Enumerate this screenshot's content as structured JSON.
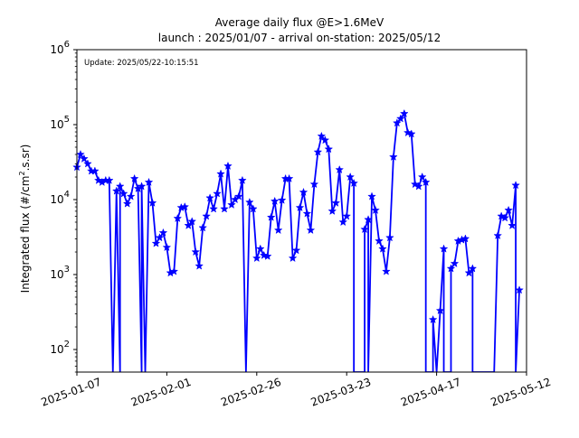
{
  "chart_data": {
    "type": "line",
    "title": "Average daily flux @E>1.6MeV",
    "subtitle": "launch : 2025/01/07 - arrival on-station: 2025/05/12",
    "annotation": "Update: 2025/05/22-10:15:51",
    "ylabel_parts": {
      "pre": "Integrated flux (#/cm",
      "sup": "2",
      "post": ".s.sr)"
    },
    "xlabel": "",
    "y_scale": "log",
    "ylim": [
      50,
      1000000
    ],
    "y_ticks": [
      {
        "value": 100,
        "label": "10",
        "exp": "2"
      },
      {
        "value": 1000,
        "label": "10",
        "exp": "3"
      },
      {
        "value": 10000,
        "label": "10",
        "exp": "4"
      },
      {
        "value": 100000,
        "label": "10",
        "exp": "5"
      },
      {
        "value": 1000000,
        "label": "10",
        "exp": "6"
      }
    ],
    "xlim": [
      "2025-01-07",
      "2025-05-12"
    ],
    "x_ticks": [
      "2025-01-07",
      "2025-02-01",
      "2025-02-26",
      "2025-03-23",
      "2025-04-17",
      "2025-05-12"
    ],
    "grid": false,
    "color": "#0000ff",
    "marker": "star",
    "series": [
      {
        "points": [
          [
            "2025-01-07",
            27000
          ],
          [
            "2025-01-08",
            40000
          ],
          [
            "2025-01-09",
            35000
          ],
          [
            "2025-01-10",
            30000
          ],
          [
            "2025-01-11",
            24000
          ],
          [
            "2025-01-12",
            24000
          ],
          [
            "2025-01-13",
            18000
          ],
          [
            "2025-01-14",
            17000
          ],
          [
            "2025-01-15",
            18000
          ],
          [
            "2025-01-16",
            18000
          ],
          [
            "2025-01-17",
            50
          ],
          [
            "2025-01-18",
            13000
          ],
          [
            "2025-01-19",
            50
          ],
          [
            "2025-01-19",
            15000
          ],
          [
            "2025-01-20",
            12000
          ],
          [
            "2025-01-21",
            8800
          ],
          [
            "2025-01-22",
            11000
          ],
          [
            "2025-01-23",
            19000
          ],
          [
            "2025-01-24",
            14000
          ],
          [
            "2025-01-25",
            50
          ],
          [
            "2025-01-25",
            15000
          ],
          [
            "2025-01-26",
            50
          ],
          [
            "2025-01-27",
            17000
          ],
          [
            "2025-01-28",
            9000
          ],
          [
            "2025-01-29",
            2600
          ],
          [
            "2025-01-30",
            3100
          ],
          [
            "2025-01-31",
            3600
          ],
          [
            "2025-02-01",
            2300
          ],
          [
            "2025-02-02",
            1050
          ],
          [
            "2025-02-03",
            1100
          ],
          [
            "2025-02-04",
            5600
          ],
          [
            "2025-02-05",
            7800
          ],
          [
            "2025-02-06",
            8000
          ],
          [
            "2025-02-07",
            4500
          ],
          [
            "2025-02-08",
            5100
          ],
          [
            "2025-02-09",
            2000
          ],
          [
            "2025-02-10",
            1300
          ],
          [
            "2025-02-11",
            4200
          ],
          [
            "2025-02-12",
            6000
          ],
          [
            "2025-02-13",
            10500
          ],
          [
            "2025-02-14",
            7500
          ],
          [
            "2025-02-15",
            12000
          ],
          [
            "2025-02-16",
            22000
          ],
          [
            "2025-02-17",
            7500
          ],
          [
            "2025-02-18",
            28000
          ],
          [
            "2025-02-19",
            8500
          ],
          [
            "2025-02-20",
            10000
          ],
          [
            "2025-02-21",
            11000
          ],
          [
            "2025-02-22",
            18000
          ],
          [
            "2025-02-23",
            50
          ],
          [
            "2025-02-24",
            9200
          ],
          [
            "2025-02-25",
            7500
          ],
          [
            "2025-02-26",
            1650
          ],
          [
            "2025-02-27",
            2200
          ],
          [
            "2025-02-28",
            1800
          ],
          [
            "2025-03-01",
            1750
          ],
          [
            "2025-03-02",
            5800
          ],
          [
            "2025-03-03",
            9500
          ],
          [
            "2025-03-04",
            3900
          ],
          [
            "2025-03-05",
            9800
          ],
          [
            "2025-03-06",
            19000
          ],
          [
            "2025-03-07",
            19000
          ],
          [
            "2025-03-08",
            1650
          ],
          [
            "2025-03-09",
            2100
          ],
          [
            "2025-03-10",
            7800
          ],
          [
            "2025-03-11",
            12500
          ],
          [
            "2025-03-12",
            6500
          ],
          [
            "2025-03-13",
            3900
          ],
          [
            "2025-03-14",
            16000
          ],
          [
            "2025-03-15",
            43000
          ],
          [
            "2025-03-16",
            70000
          ],
          [
            "2025-03-17",
            62000
          ],
          [
            "2025-03-18",
            47000
          ],
          [
            "2025-03-19",
            7000
          ],
          [
            "2025-03-20",
            9000
          ],
          [
            "2025-03-21",
            25000
          ],
          [
            "2025-03-22",
            5000
          ],
          [
            "2025-03-23",
            6000
          ],
          [
            "2025-03-24",
            20000
          ],
          [
            "2025-03-25",
            16500
          ],
          [
            "2025-03-25",
            50
          ],
          [
            "2025-03-28",
            50
          ],
          [
            "2025-03-28",
            4000
          ],
          [
            "2025-03-29",
            5400
          ],
          [
            "2025-03-29",
            50
          ],
          [
            "2025-03-30",
            11000
          ],
          [
            "2025-03-31",
            7200
          ],
          [
            "2025-04-01",
            2800
          ],
          [
            "2025-04-02",
            2200
          ],
          [
            "2025-04-03",
            1100
          ],
          [
            "2025-04-04",
            3100
          ],
          [
            "2025-04-05",
            37000
          ],
          [
            "2025-04-06",
            105000
          ],
          [
            "2025-04-07",
            120000
          ],
          [
            "2025-04-08",
            140000
          ],
          [
            "2025-04-09",
            78000
          ],
          [
            "2025-04-10",
            75000
          ],
          [
            "2025-04-11",
            16000
          ],
          [
            "2025-04-12",
            15000
          ],
          [
            "2025-04-13",
            20000
          ],
          [
            "2025-04-14",
            17000
          ],
          [
            "2025-04-14",
            50
          ],
          [
            "2025-04-16",
            50
          ],
          [
            "2025-04-16",
            250
          ],
          [
            "2025-04-17",
            50
          ],
          [
            "2025-04-18",
            330
          ],
          [
            "2025-04-19",
            2200
          ],
          [
            "2025-04-19",
            50
          ],
          [
            "2025-04-21",
            50
          ],
          [
            "2025-04-21",
            1200
          ],
          [
            "2025-04-22",
            1400
          ],
          [
            "2025-04-23",
            2800
          ],
          [
            "2025-04-24",
            2900
          ],
          [
            "2025-04-25",
            3000
          ],
          [
            "2025-04-26",
            1050
          ],
          [
            "2025-04-27",
            1200
          ],
          [
            "2025-04-27",
            50
          ],
          [
            "2025-05-03",
            50
          ],
          [
            "2025-05-04",
            3300
          ],
          [
            "2025-05-05",
            6000
          ],
          [
            "2025-05-06",
            5700
          ],
          [
            "2025-05-07",
            7200
          ],
          [
            "2025-05-08",
            4500
          ],
          [
            "2025-05-09",
            15500
          ],
          [
            "2025-05-09",
            50
          ],
          [
            "2025-05-10",
            620
          ]
        ]
      }
    ]
  }
}
